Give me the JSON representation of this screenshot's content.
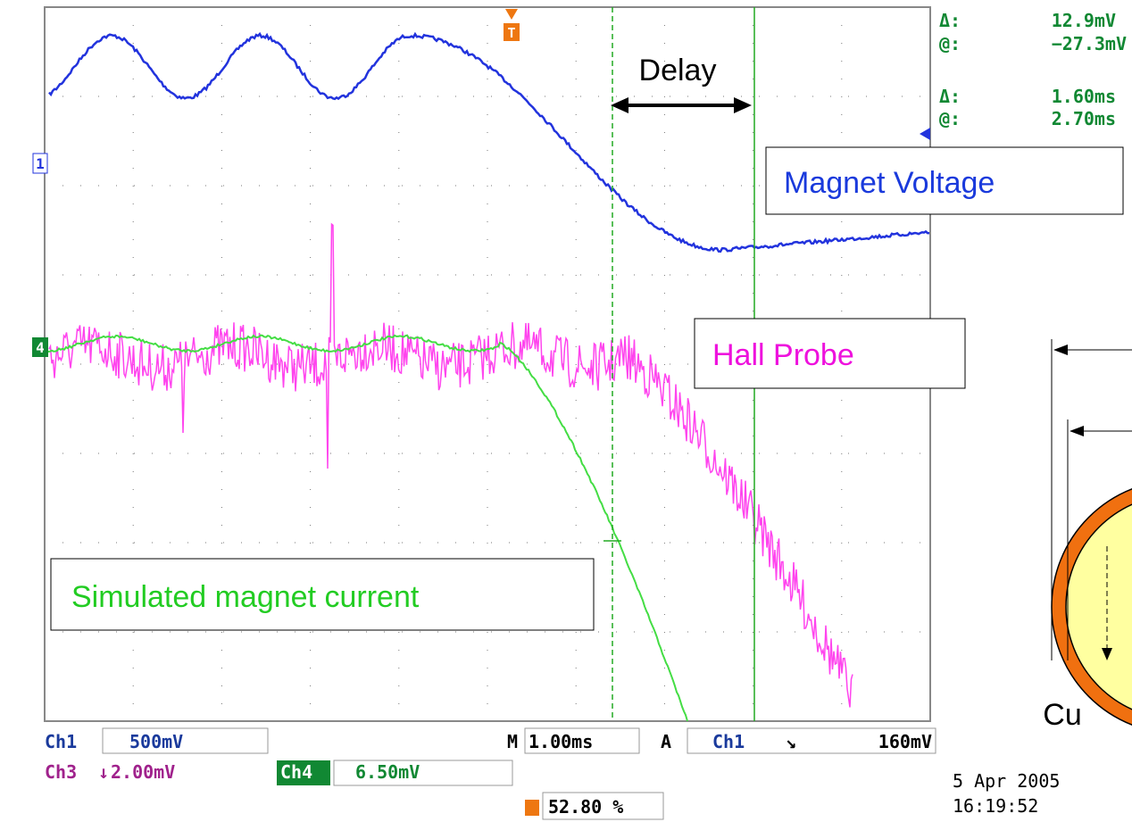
{
  "readout": {
    "amp_delta_symbol": "Δ:",
    "amp_delta": "12.9mV",
    "amp_at_symbol": "@:",
    "amp_at": "−27.3mV",
    "time_delta_symbol": "Δ:",
    "time_delta": "1.60ms",
    "time_at_symbol": "@:",
    "time_at": "2.70ms"
  },
  "annotations": {
    "delay": "Delay",
    "magnet_voltage": "Magnet Voltage",
    "hall_probe": "Hall Probe",
    "simulated_current": "Simulated magnet current",
    "material": "Cu"
  },
  "markers": {
    "ch1": "1",
    "ch4": "4",
    "trigger": "T"
  },
  "status": {
    "ch1_name": "Ch1",
    "ch1_scale": "500mV",
    "time_prefix": "M",
    "time_scale": "1.00ms",
    "trigger_mode": "A",
    "trigger_source": "Ch1",
    "trigger_level": "160mV",
    "ch3_name": "Ch3",
    "ch3_scale": "2.00mV",
    "ch4_name": "Ch4",
    "ch4_scale": "6.50mV",
    "trigger_position": "52.80 %",
    "date": "5 Apr 2005",
    "time": "16:19:52"
  }
}
